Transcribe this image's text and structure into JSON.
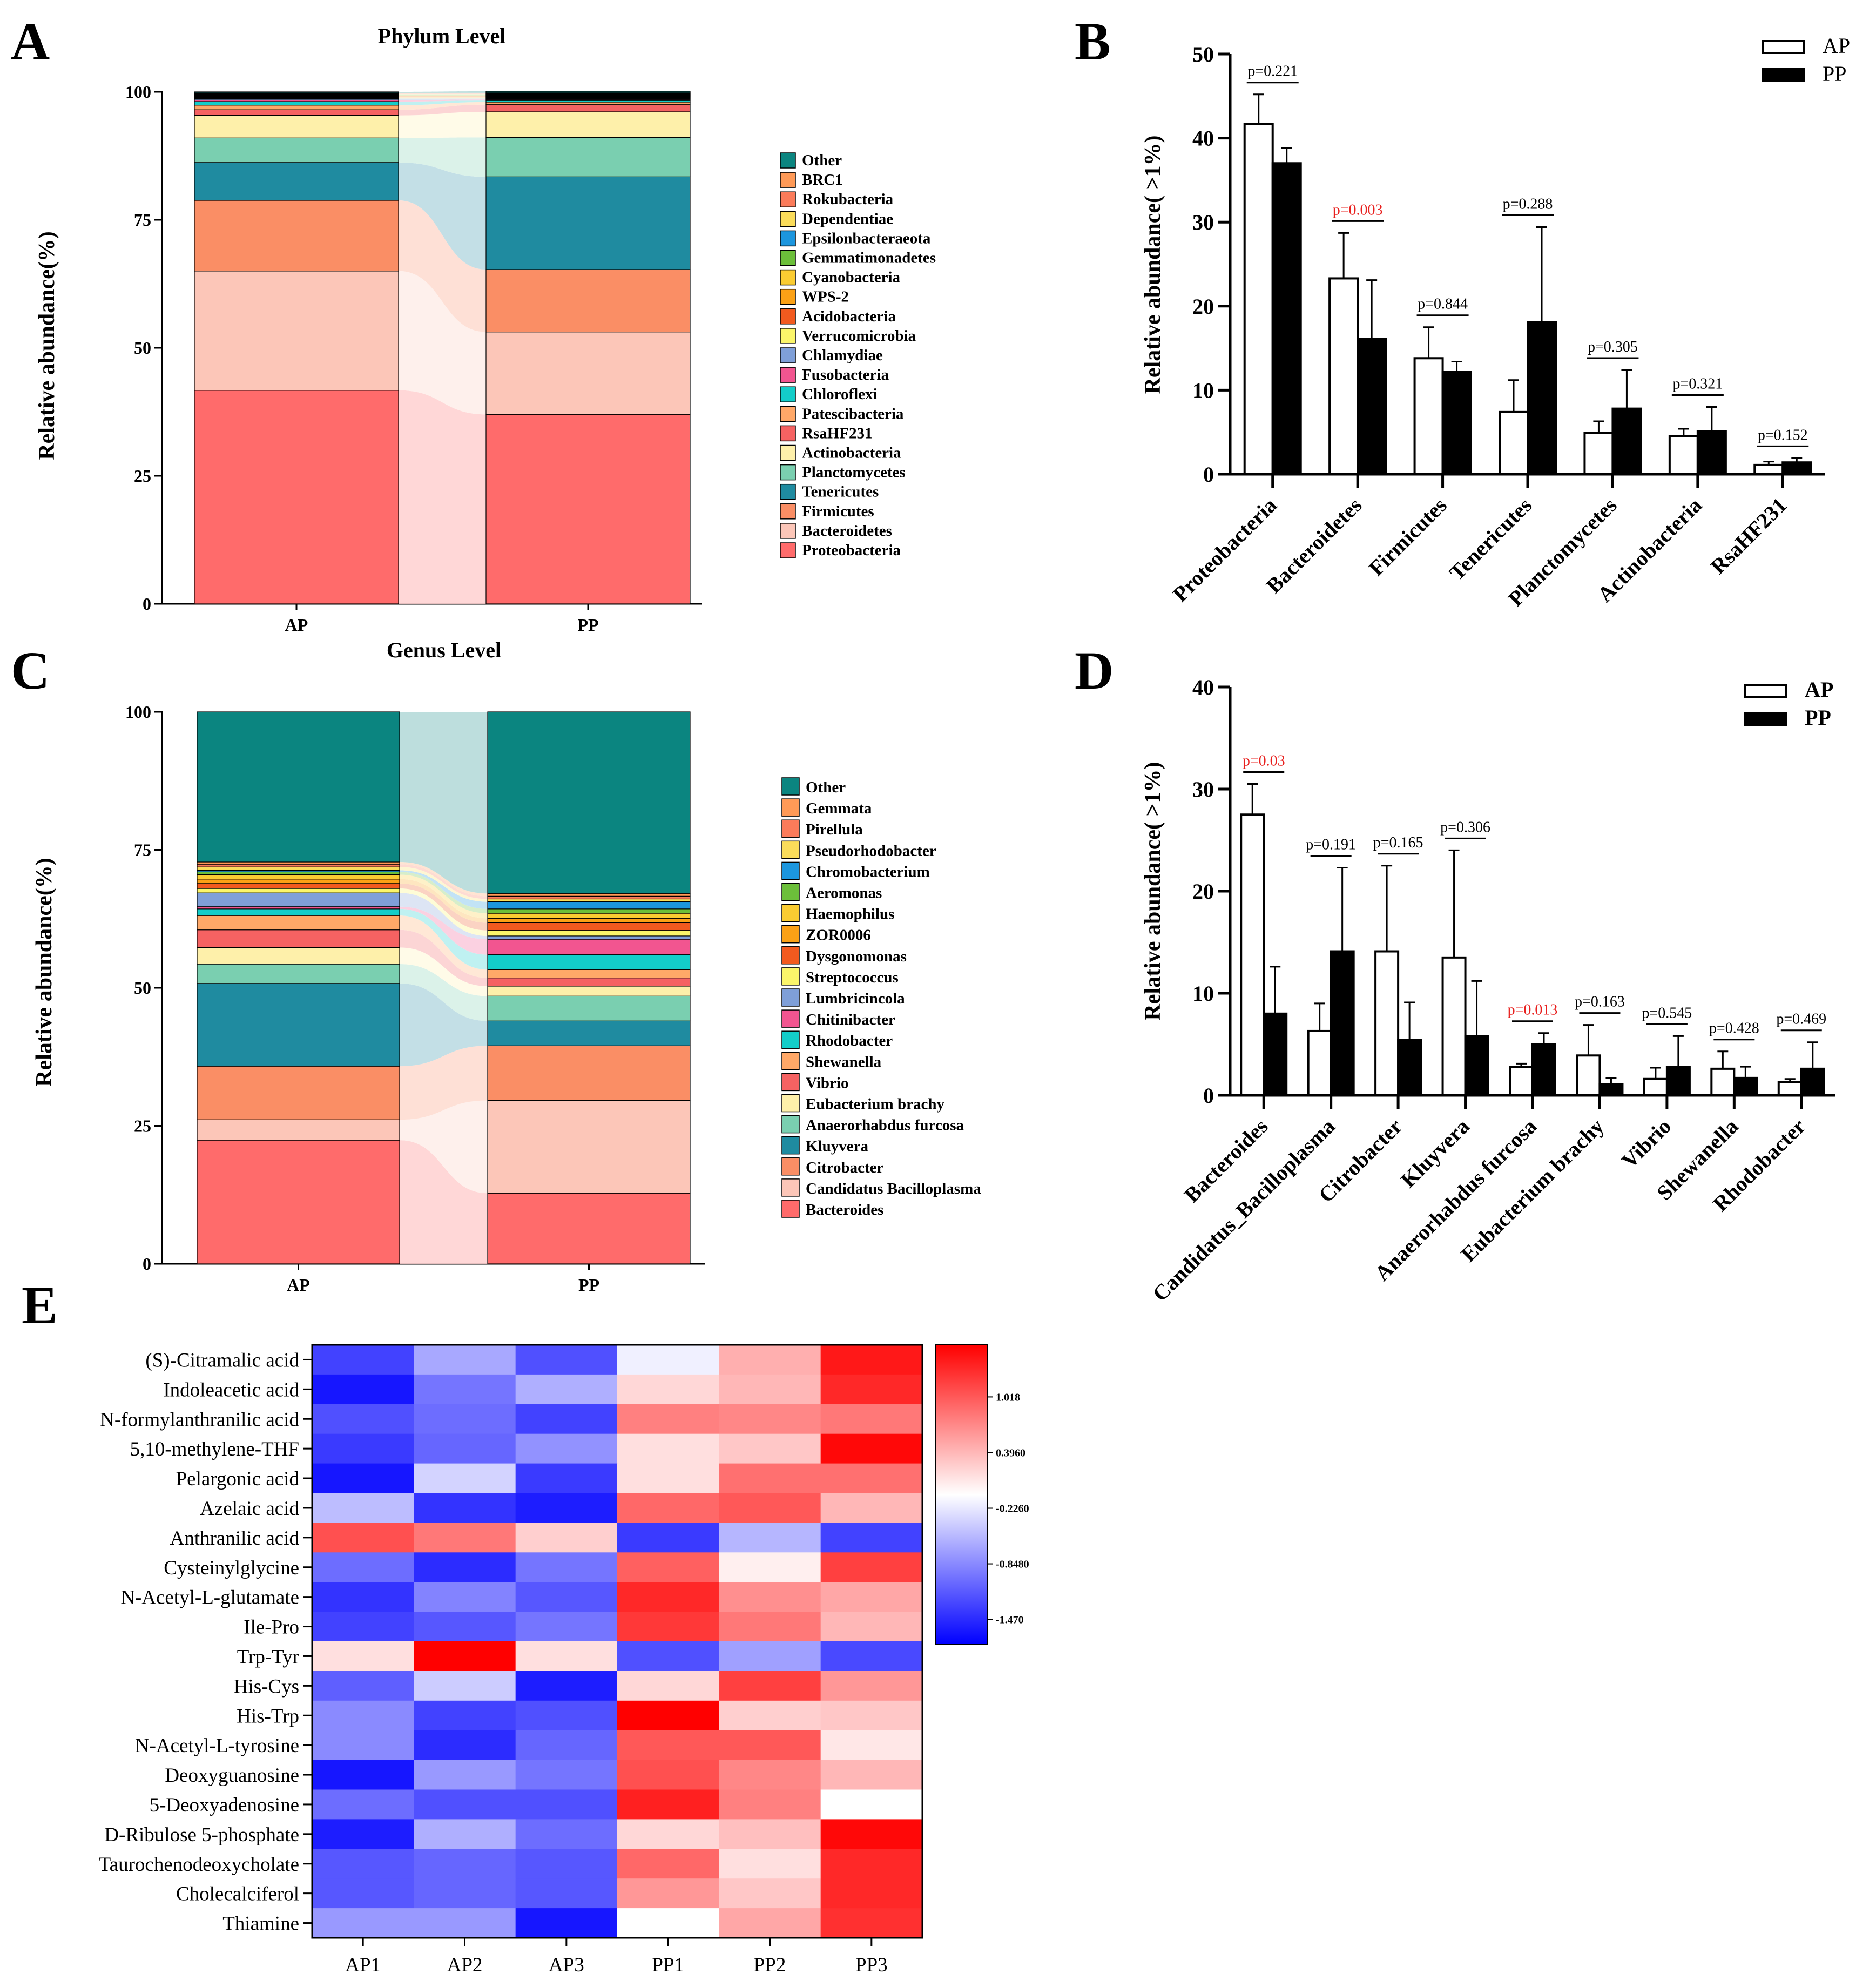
{
  "panel_labels": [
    "A",
    "B",
    "C",
    "D",
    "E"
  ],
  "colors": {
    "stack": [
      "#FF6B6B",
      "#FCC6B8",
      "#FA8E65",
      "#1F8BA0",
      "#7ACFB0",
      "#FEF0AA",
      "#F56262",
      "#FFA868",
      "#13CDC9",
      "#F25590",
      "#7F9FD8",
      "#FBF56A",
      "#F25A1F",
      "#FBA116",
      "#FACC32",
      "#6CBF3A",
      "#1C96DE",
      "#FADC5A",
      "#FB7B5A",
      "#FF9A57",
      "#0B8580"
    ],
    "heat_low": "#0000FF",
    "heat_mid": "#FFFFFF",
    "heat_high": "#FF0000",
    "significant_p": "#E8201E"
  },
  "chart_data": [
    {
      "id": "A",
      "type": "stacked-bar",
      "title": "Phylum Level",
      "ylabel": "Relative abundance(%)",
      "ylim": [
        0,
        100
      ],
      "yticks": [
        "0",
        "25",
        "50",
        "75",
        "100"
      ],
      "categories": [
        "AP",
        "PP"
      ],
      "legend_position": "right",
      "legend": [
        "Other",
        "BRC1",
        "Rokubacteria",
        "Dependentiae",
        "Epsilonbacteraeota",
        "Gemmatimonadetes",
        "Cyanobacteria",
        "WPS-2",
        "Acidobacteria",
        "Verrucomicrobia",
        "Chlamydiae",
        "Fusobacteria",
        "Chloroflexi",
        "Patescibacteria",
        "RsaHF231",
        "Actinobacteria",
        "Planctomycetes",
        "Tenericutes",
        "Firmicutes",
        "Bacteroidetes",
        "Proteobacteria"
      ],
      "series": [
        {
          "name": "Proteobacteria",
          "values": [
            41.7,
            37.0
          ]
        },
        {
          "name": "Bacteroidetes",
          "values": [
            23.3,
            16.1
          ]
        },
        {
          "name": "Firmicutes",
          "values": [
            13.8,
            12.2
          ]
        },
        {
          "name": "Tenericutes",
          "values": [
            7.4,
            18.1
          ]
        },
        {
          "name": "Planctomycetes",
          "values": [
            4.8,
            7.7
          ]
        },
        {
          "name": "Actinobacteria",
          "values": [
            4.4,
            5.0
          ]
        },
        {
          "name": "RsaHF231",
          "values": [
            1.1,
            1.4
          ]
        },
        {
          "name": "Patescibacteria",
          "values": [
            0.9,
            0.5
          ]
        },
        {
          "name": "Chloroflexi",
          "values": [
            0.7,
            0.3
          ]
        },
        {
          "name": "Fusobacteria",
          "values": [
            0.3,
            0.2
          ]
        },
        {
          "name": "Chlamydiae",
          "values": [
            0.3,
            0.2
          ]
        },
        {
          "name": "Verrucomicrobia",
          "values": [
            0.2,
            0.2
          ]
        },
        {
          "name": "Acidobacteria",
          "values": [
            0.2,
            0.2
          ]
        },
        {
          "name": "WPS-2",
          "values": [
            0.1,
            0.1
          ]
        },
        {
          "name": "Cyanobacteria",
          "values": [
            0.1,
            0.1
          ]
        },
        {
          "name": "Gemmatimonadetes",
          "values": [
            0.1,
            0.1
          ]
        },
        {
          "name": "Epsilonbacteraeota",
          "values": [
            0.1,
            0.1
          ]
        },
        {
          "name": "Dependentiae",
          "values": [
            0.1,
            0.1
          ]
        },
        {
          "name": "Rokubacteria",
          "values": [
            0.1,
            0.1
          ]
        },
        {
          "name": "BRC1",
          "values": [
            0.1,
            0.1
          ]
        },
        {
          "name": "Other",
          "values": [
            0.2,
            0.3
          ]
        }
      ]
    },
    {
      "id": "B",
      "type": "bar",
      "ylabel": "Relative abundance( >1%)",
      "ylim": [
        0,
        50
      ],
      "yticks": [
        "0",
        "10",
        "20",
        "30",
        "40",
        "50"
      ],
      "categories": [
        "Proteobacteria",
        "Bacteroidetes",
        "Firmicutes",
        "Tenericutes",
        "Planctomycetes",
        "Actinobacteria",
        "RsaHF231"
      ],
      "legend_position": "top-right",
      "series": [
        {
          "name": "AP",
          "values": [
            41.7,
            23.3,
            13.8,
            7.4,
            4.9,
            4.5,
            1.1
          ],
          "errors": [
            3.5,
            5.4,
            3.7,
            3.8,
            1.4,
            0.9,
            0.4
          ]
        },
        {
          "name": "PP",
          "values": [
            37.0,
            16.1,
            12.2,
            18.1,
            7.8,
            5.1,
            1.4
          ],
          "errors": [
            1.8,
            7.0,
            1.2,
            11.3,
            4.6,
            2.9,
            0.5
          ]
        }
      ],
      "pvalues": [
        "p=0.221",
        "p=0.003",
        "p=0.844",
        "p=0.288",
        "p=0.305",
        "p=0.321",
        "p=0.152"
      ],
      "significant": [
        false,
        true,
        false,
        false,
        false,
        false,
        false
      ]
    },
    {
      "id": "C",
      "type": "stacked-bar",
      "title": "Genus Level",
      "ylabel": "Relative abundance(%)",
      "ylim": [
        0,
        100
      ],
      "yticks": [
        "0",
        "25",
        "50",
        "75",
        "100"
      ],
      "categories": [
        "AP",
        "PP"
      ],
      "legend_position": "right",
      "legend": [
        "Other",
        "Gemmata",
        "Pirellula",
        "Pseudorhodobacter",
        "Chromobacterium",
        "Aeromonas",
        "Haemophilus",
        "ZOR0006",
        "Dysgonomonas",
        "Streptococcus",
        "Lumbricincola",
        "Chitinibacter",
        "Rhodobacter",
        "Shewanella",
        "Vibrio",
        "Eubacterium brachy",
        "Anaerorhabdus furcosa",
        "Kluyvera",
        "Citrobacter",
        "Candidatus Bacilloplasma",
        "Bacteroides"
      ],
      "series": [
        {
          "name": "Bacteroides",
          "values": [
            22.4,
            12.8
          ]
        },
        {
          "name": "Candidatus Bacilloplasma",
          "values": [
            3.7,
            16.8
          ]
        },
        {
          "name": "Citrobacter",
          "values": [
            9.7,
            9.9
          ]
        },
        {
          "name": "Kluyvera",
          "values": [
            15.0,
            4.5
          ]
        },
        {
          "name": "Anaerorhabdus furcosa",
          "values": [
            3.5,
            4.5
          ]
        },
        {
          "name": "Eubacterium brachy",
          "values": [
            3.0,
            1.8
          ]
        },
        {
          "name": "Vibrio",
          "values": [
            3.2,
            1.5
          ]
        },
        {
          "name": "Shewanella",
          "values": [
            2.6,
            1.5
          ]
        },
        {
          "name": "Rhodobacter",
          "values": [
            1.2,
            2.7
          ]
        },
        {
          "name": "Chitinibacter",
          "values": [
            0.4,
            2.8
          ]
        },
        {
          "name": "Lumbricincola",
          "values": [
            2.5,
            0.6
          ]
        },
        {
          "name": "Streptococcus",
          "values": [
            0.8,
            1.0
          ]
        },
        {
          "name": "Dysgonomonas",
          "values": [
            0.9,
            1.4
          ]
        },
        {
          "name": "ZOR0006",
          "values": [
            0.8,
            0.8
          ]
        },
        {
          "name": "Haemophilus",
          "values": [
            0.8,
            0.9
          ]
        },
        {
          "name": "Aeromonas",
          "values": [
            0.5,
            0.8
          ]
        },
        {
          "name": "Chromobacterium",
          "values": [
            0.3,
            1.3
          ]
        },
        {
          "name": "Pseudorhodobacter",
          "values": [
            0.6,
            0.5
          ]
        },
        {
          "name": "Pirellula",
          "values": [
            0.5,
            0.5
          ]
        },
        {
          "name": "Gemmata",
          "values": [
            0.4,
            0.5
          ]
        },
        {
          "name": "Other",
          "values": [
            27.2,
            32.9
          ]
        }
      ]
    },
    {
      "id": "D",
      "type": "bar",
      "ylabel": "Relative abundance( >1%)",
      "ylim": [
        0,
        40
      ],
      "yticks": [
        "0",
        "10",
        "20",
        "30",
        "40"
      ],
      "categories": [
        "Bacteroides",
        "Candidatus_Bacilloplasma",
        "Citrobacter",
        "Kluyvera",
        "Anaerorhabdus furcosa",
        "Eubacterium brachy",
        "Vibrio",
        "Shewanella",
        "Rhodobacter"
      ],
      "legend_position": "top-right",
      "series": [
        {
          "name": "AP",
          "values": [
            27.5,
            6.3,
            14.1,
            13.5,
            2.8,
            3.9,
            1.6,
            2.6,
            1.3
          ],
          "errors": [
            3.0,
            2.7,
            8.4,
            10.5,
            0.3,
            3.0,
            1.1,
            1.7,
            0.3
          ]
        },
        {
          "name": "PP",
          "values": [
            8.0,
            14.1,
            5.4,
            5.8,
            5.0,
            1.1,
            2.8,
            1.7,
            2.6
          ],
          "errors": [
            4.6,
            8.2,
            3.7,
            5.4,
            1.1,
            0.6,
            3.0,
            1.1,
            2.6
          ]
        }
      ],
      "pvalues": [
        "p=0.03",
        "p=0.191",
        "p=0.165",
        "p=0.306",
        "p=0.013",
        "p=0.163",
        "p=0.545",
        "p=0.428",
        "p=0.469"
      ],
      "significant": [
        true,
        false,
        false,
        false,
        true,
        false,
        false,
        false,
        false
      ]
    },
    {
      "id": "E",
      "type": "heatmap",
      "columns": [
        "AP1",
        "AP2",
        "AP3",
        "PP1",
        "PP2",
        "PP3"
      ],
      "rows": [
        "(S)-Citramalic acid",
        "Indoleacetic acid",
        "N-formylanthranilic acid",
        "5,10-methylene-THF",
        "Pelargonic acid",
        "Azelaic acid",
        "Anthranilic acid",
        "Cysteinylglycine",
        "N-Acetyl-L-glutamate",
        "Ile-Pro",
        "Trp-Tyr",
        "His-Cys",
        "His-Trp",
        "N-Acetyl-L-tyrosine",
        "Deoxyguanosine",
        "5-Deoxyadenosine",
        "D-Ribulose 5-phosphate",
        "Taurochenodeoxycholate",
        "Cholecalciferol",
        "Thiamine"
      ],
      "values": [
        [
          -1.3,
          -0.6,
          -1.2,
          -0.1,
          0.5,
          1.45
        ],
        [
          -1.6,
          -0.95,
          -0.55,
          0.25,
          0.45,
          1.35
        ],
        [
          -1.2,
          -1.0,
          -1.3,
          0.8,
          0.75,
          0.85
        ],
        [
          -1.35,
          -1.05,
          -0.75,
          0.2,
          0.35,
          1.55
        ],
        [
          -1.6,
          -0.3,
          -1.35,
          0.2,
          0.9,
          0.9
        ],
        [
          -0.45,
          -1.4,
          -1.55,
          0.95,
          1.05,
          0.45
        ],
        [
          1.1,
          0.85,
          0.3,
          -1.35,
          -0.5,
          -1.3
        ],
        [
          -1.0,
          -1.45,
          -0.95,
          1.0,
          0.1,
          1.2
        ],
        [
          -1.4,
          -0.85,
          -1.15,
          1.35,
          0.7,
          0.55
        ],
        [
          -1.3,
          -1.15,
          -0.95,
          1.25,
          0.85,
          0.45
        ],
        [
          0.2,
          1.6,
          0.2,
          -1.2,
          -0.65,
          -1.25
        ],
        [
          -1.1,
          -0.35,
          -1.55,
          0.25,
          1.2,
          0.65
        ],
        [
          -0.8,
          -1.3,
          -1.2,
          1.6,
          0.3,
          0.35
        ],
        [
          -0.8,
          -1.45,
          -1.05,
          1.05,
          1.05,
          0.15
        ],
        [
          -1.6,
          -0.7,
          -0.95,
          1.1,
          0.75,
          0.45
        ],
        [
          -1.0,
          -1.2,
          -1.2,
          1.4,
          0.8,
          0.0
        ],
        [
          -1.55,
          -0.55,
          -1.0,
          0.25,
          0.4,
          1.55
        ],
        [
          -1.15,
          -1.05,
          -1.15,
          0.95,
          0.2,
          1.35
        ],
        [
          -1.15,
          -1.05,
          -1.15,
          0.65,
          0.35,
          1.35
        ],
        [
          -0.7,
          -0.7,
          -1.6,
          0.0,
          0.55,
          1.3
        ]
      ],
      "colorbar": {
        "ticks": [
          "1.018",
          "0.3960",
          "-0.2260",
          "-0.8480",
          "-1.470"
        ],
        "tick_values": [
          1.018,
          0.396,
          -0.226,
          -0.848,
          -1.47
        ],
        "range": [
          -1.75,
          1.6
        ]
      }
    }
  ]
}
